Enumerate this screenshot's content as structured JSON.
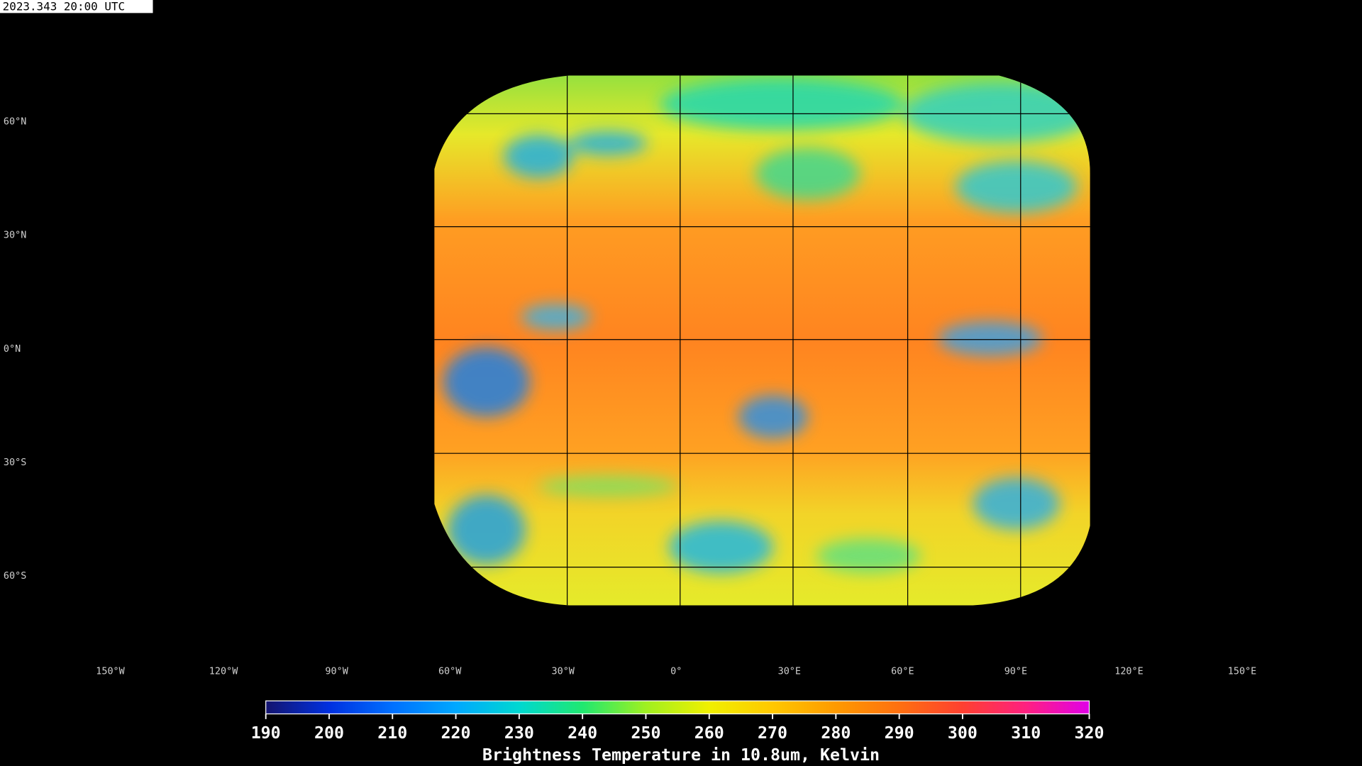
{
  "header": {
    "timestamp": "2023.343 20:00 UTC"
  },
  "map": {
    "lat_labels": [
      "60°N",
      "30°N",
      "0°N",
      "30°S",
      "60°S"
    ],
    "lon_labels": [
      "150°W",
      "120°W",
      "90°W",
      "60°W",
      "30°W",
      "0°",
      "30°E",
      "60°E",
      "90°E",
      "120°E",
      "150°E"
    ]
  },
  "colorbar": {
    "lim": [
      190,
      320
    ],
    "ticks": [
      190,
      200,
      210,
      220,
      230,
      240,
      250,
      260,
      270,
      280,
      290,
      300,
      310,
      320
    ],
    "label": "Brightness Temperature in 10.8um, Kelvin"
  }
}
